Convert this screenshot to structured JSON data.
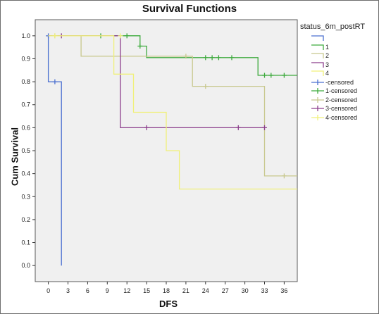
{
  "chart_data": {
    "type": "line",
    "title": "Survival Functions",
    "xlabel": "DFS",
    "ylabel": "Cum Survival",
    "xlim": [
      -2,
      38
    ],
    "ylim": [
      -0.07,
      1.07
    ],
    "xticks": [
      "0",
      "3",
      "6",
      "9",
      "12",
      "15",
      "18",
      "21",
      "24",
      "27",
      "30",
      "33",
      "36"
    ],
    "yticks": [
      "0.0",
      "0.1",
      "0.2",
      "0.3",
      "0.4",
      "0.5",
      "0.6",
      "0.7",
      "0.8",
      "0.9",
      "1.0"
    ],
    "legend_title": "status_6m_postRT",
    "legend_position": "right",
    "series": [
      {
        "name": "",
        "color": "#4a6fd0",
        "steps": [
          [
            0,
            1.0
          ],
          [
            0,
            0.8
          ],
          [
            2,
            0.8
          ],
          [
            2,
            0.0
          ]
        ],
        "censored_name": "-censored",
        "censored": [
          [
            0,
            1.0
          ],
          [
            1,
            0.8
          ]
        ]
      },
      {
        "name": "1",
        "color": "#3daa3d",
        "steps": [
          [
            0,
            1.0
          ],
          [
            14,
            1.0
          ],
          [
            14,
            0.955
          ],
          [
            15,
            0.955
          ],
          [
            15,
            0.905
          ],
          [
            32,
            0.905
          ],
          [
            32,
            0.828
          ],
          [
            38,
            0.828
          ]
        ],
        "censored_name": "1-censored",
        "censored": [
          [
            8,
            1.0
          ],
          [
            12,
            1.0
          ],
          [
            14,
            0.955
          ],
          [
            24,
            0.905
          ],
          [
            25,
            0.905
          ],
          [
            26,
            0.905
          ],
          [
            28,
            0.905
          ],
          [
            33,
            0.828
          ],
          [
            34,
            0.828
          ],
          [
            36,
            0.828
          ]
        ]
      },
      {
        "name": "2",
        "color": "#c8c88e",
        "steps": [
          [
            0,
            1.0
          ],
          [
            5,
            1.0
          ],
          [
            5,
            0.911
          ],
          [
            22,
            0.911
          ],
          [
            22,
            0.78
          ],
          [
            33,
            0.78
          ],
          [
            33,
            0.39
          ],
          [
            38,
            0.39
          ]
        ],
        "censored_name": "2-censored",
        "censored": [
          [
            1,
            1.0
          ],
          [
            21,
            0.911
          ],
          [
            24,
            0.78
          ],
          [
            36,
            0.39
          ]
        ]
      },
      {
        "name": "3",
        "color": "#8c3e8c",
        "steps": [
          [
            0,
            1.0
          ],
          [
            11,
            1.0
          ],
          [
            11,
            0.6
          ],
          [
            33,
            0.6
          ]
        ],
        "censored_name": "3-censored",
        "censored": [
          [
            2,
            1.0
          ],
          [
            15,
            0.6
          ],
          [
            29,
            0.6
          ],
          [
            33,
            0.6
          ]
        ]
      },
      {
        "name": "4",
        "color": "#f0f07a",
        "steps": [
          [
            0,
            1.0
          ],
          [
            10,
            1.0
          ],
          [
            10,
            0.833
          ],
          [
            13,
            0.833
          ],
          [
            13,
            0.667
          ],
          [
            18,
            0.667
          ],
          [
            18,
            0.5
          ],
          [
            20,
            0.5
          ],
          [
            20,
            0.333
          ],
          [
            38,
            0.333
          ]
        ],
        "censored_name": "4-censored",
        "censored": [
          [
            1,
            1.0
          ],
          [
            11,
            1.0
          ]
        ]
      }
    ],
    "grid": false
  }
}
